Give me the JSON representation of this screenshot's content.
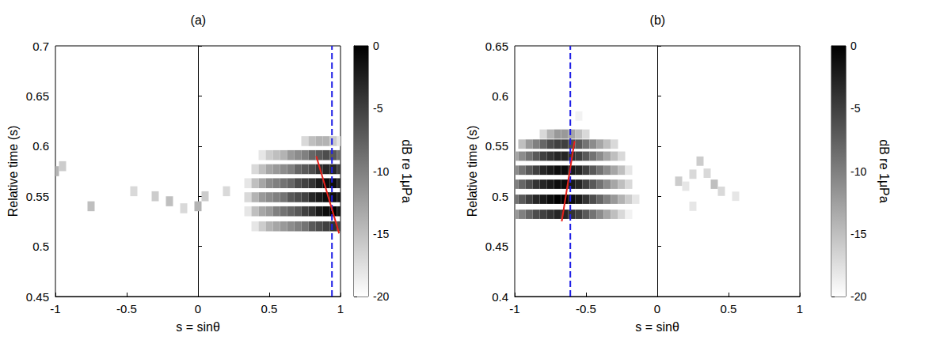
{
  "chart_data": [
    {
      "type": "heatmap",
      "title": "(a)",
      "x_label": "s = sinθ",
      "y_label": "Relative time (s)",
      "xlim": [
        -1,
        1
      ],
      "xticks": [
        -1,
        -0.5,
        0,
        0.5,
        1
      ],
      "ylim": [
        0.45,
        0.7
      ],
      "yticks": [
        0.45,
        0.5,
        0.55,
        0.6,
        0.65,
        0.7
      ],
      "cells": {
        "s": [
          0.35,
          0.4,
          0.45,
          0.5,
          0.55,
          0.6,
          0.65,
          0.7,
          0.75,
          0.8,
          0.85,
          0.9,
          0.95,
          1.0
        ],
        "rows": [
          {
            "t": 0.52,
            "db": [
              null,
              -18,
              -16,
              -14,
              -13,
              -12,
              -11,
              -10,
              -9,
              -7,
              -6,
              -5,
              -4,
              -6
            ]
          },
          {
            "t": 0.535,
            "db": [
              -18,
              -15,
              -13,
              -12,
              -10,
              -9,
              -8,
              -7,
              -5,
              -4,
              -2,
              -1,
              0,
              -2
            ]
          },
          {
            "t": 0.549,
            "db": [
              -17,
              -14,
              -12,
              -11,
              -10,
              -9,
              -7,
              -6,
              -5,
              -3,
              -2,
              -1,
              -1,
              -2
            ]
          },
          {
            "t": 0.563,
            "db": [
              -18,
              -15,
              -13,
              -11,
              -10,
              -9,
              -8,
              -6,
              -5,
              -4,
              -2,
              -1,
              -1,
              -3
            ]
          },
          {
            "t": 0.577,
            "db": [
              null,
              -17,
              -15,
              -13,
              -12,
              -11,
              -10,
              -8,
              -7,
              -6,
              -4,
              -3,
              -3,
              -5
            ]
          },
          {
            "t": 0.591,
            "db": [
              null,
              null,
              -18,
              -16,
              -15,
              -14,
              -12,
              -11,
              -10,
              -8,
              -7,
              -6,
              -7,
              -9
            ]
          },
          {
            "t": 0.605,
            "db": [
              null,
              null,
              null,
              null,
              null,
              null,
              null,
              null,
              -17,
              -15,
              -14,
              -14,
              -16,
              -18
            ]
          }
        ]
      },
      "spots": [
        [
          -1,
          0.575,
          -14
        ],
        [
          -0.95,
          0.58,
          -16
        ],
        [
          -0.75,
          0.54,
          -15
        ],
        [
          -0.45,
          0.555,
          -17
        ],
        [
          -0.3,
          0.55,
          -16
        ],
        [
          -0.2,
          0.545,
          -15
        ],
        [
          0,
          0.54,
          -14
        ],
        [
          0.05,
          0.55,
          -16
        ],
        [
          -0.1,
          0.538,
          -17
        ],
        [
          0.2,
          0.555,
          -17
        ]
      ],
      "colorbar": {
        "label": "dB re 1μPa",
        "range": [
          -20,
          0
        ],
        "ticks": [
          0,
          -5,
          -10,
          -15,
          -20
        ],
        "colors": [
          "#ffffff",
          "#000000"
        ]
      },
      "overlays": [
        {
          "type": "line",
          "line_style": "dashed",
          "color": "#1e1ee6",
          "x": [
            0.94,
            0.94
          ],
          "values": [
            0.45,
            0.7
          ]
        },
        {
          "type": "line",
          "line_style": "solid",
          "color": "#e8221b",
          "x": [
            0.83,
            0.99
          ],
          "values": [
            0.59,
            0.513
          ]
        }
      ]
    },
    {
      "type": "heatmap",
      "title": "(b)",
      "x_label": "s = sinθ",
      "y_label": "Relative time (s)",
      "xlim": [
        -1,
        1
      ],
      "xticks": [
        -1,
        -0.5,
        0,
        0.5,
        1
      ],
      "ylim": [
        0.4,
        0.65
      ],
      "yticks": [
        0.4,
        0.45,
        0.5,
        0.55,
        0.6,
        0.65
      ],
      "cells": {
        "s": [
          -1.0,
          -0.95,
          -0.9,
          -0.85,
          -0.8,
          -0.75,
          -0.7,
          -0.65,
          -0.6,
          -0.55,
          -0.5,
          -0.45,
          -0.4,
          -0.35,
          -0.3,
          -0.25,
          -0.2,
          -0.15
        ],
        "rows": [
          {
            "t": 0.482,
            "db": [
              -12,
              -10,
              -8,
              -6,
              -5,
              -4,
              -3,
              -3,
              -4,
              -5,
              -7,
              -9,
              -11,
              -13,
              -15,
              -17,
              -19,
              null
            ]
          },
          {
            "t": 0.497,
            "db": [
              -9,
              -7,
              -5,
              -3,
              -2,
              -1,
              0,
              0,
              -1,
              -2,
              -4,
              -6,
              -8,
              -10,
              -12,
              -14,
              -16,
              -18
            ]
          },
          {
            "t": 0.512,
            "db": [
              -10,
              -8,
              -6,
              -4,
              -3,
              -2,
              -1,
              -1,
              -2,
              -3,
              -5,
              -7,
              -9,
              -11,
              -13,
              -15,
              -17,
              null
            ]
          },
          {
            "t": 0.526,
            "db": [
              -11,
              -9,
              -7,
              -5,
              -3,
              -2,
              -1,
              -1,
              -2,
              -3,
              -5,
              -7,
              -9,
              -11,
              -13,
              -15,
              -18,
              null
            ]
          },
          {
            "t": 0.54,
            "db": [
              -13,
              -11,
              -9,
              -7,
              -5,
              -4,
              -3,
              -3,
              -4,
              -5,
              -7,
              -9,
              -11,
              -13,
              -15,
              -17,
              null,
              null
            ]
          },
          {
            "t": 0.552,
            "db": [
              null,
              -15,
              -12,
              -10,
              -8,
              -6,
              -5,
              -5,
              -6,
              -7,
              -9,
              -11,
              -13,
              -15,
              -17,
              null,
              null,
              null
            ]
          },
          {
            "t": 0.562,
            "db": [
              null,
              null,
              null,
              null,
              -17,
              -14,
              -12,
              -12,
              -13,
              -15,
              -17,
              null,
              null,
              null,
              null,
              null,
              null,
              null
            ]
          }
        ]
      },
      "spots": [
        [
          0.3,
          0.535,
          -16
        ],
        [
          0.25,
          0.522,
          -17
        ],
        [
          0.35,
          0.523,
          -17
        ],
        [
          0.15,
          0.515,
          -16
        ],
        [
          0.4,
          0.512,
          -15
        ],
        [
          0.45,
          0.505,
          -17
        ],
        [
          0.55,
          0.5,
          -18
        ],
        [
          0.25,
          0.49,
          -18
        ],
        [
          -0.55,
          0.58,
          -19
        ],
        [
          0.2,
          0.51,
          -18
        ]
      ],
      "colorbar": {
        "label": "dB re 1μPa",
        "range": [
          -20,
          0
        ],
        "ticks": [
          0,
          -5,
          -10,
          -15,
          -20
        ],
        "colors": [
          "#ffffff",
          "#000000"
        ]
      },
      "overlays": [
        {
          "type": "line",
          "line_style": "dashed",
          "color": "#1e1ee6",
          "x": [
            -0.61,
            -0.61
          ],
          "values": [
            0.4,
            0.65
          ]
        },
        {
          "type": "line",
          "line_style": "solid",
          "color": "#e8221b",
          "x": [
            -0.67,
            -0.58
          ],
          "values": [
            0.475,
            0.555
          ]
        }
      ]
    }
  ]
}
